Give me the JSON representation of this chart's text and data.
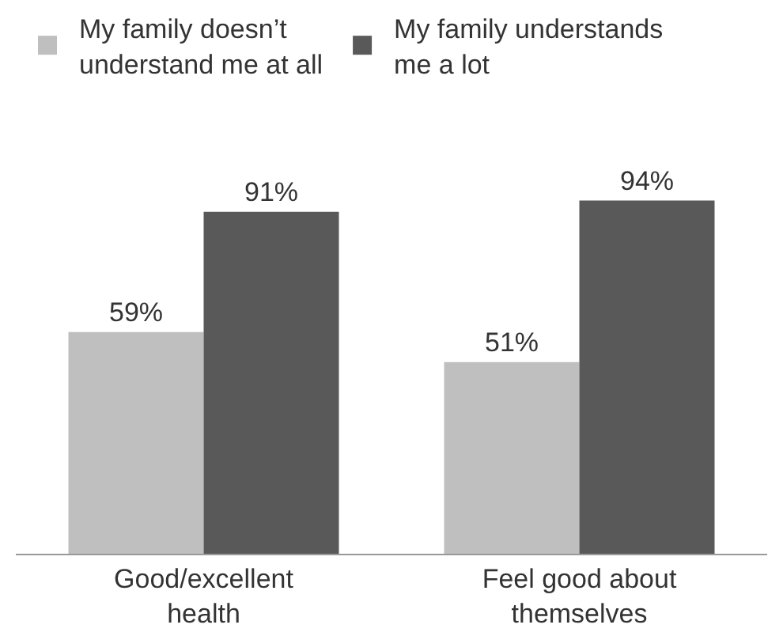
{
  "chart_data": {
    "type": "bar",
    "categories": [
      "Good/excellent health",
      "Feel good about themselves"
    ],
    "series": [
      {
        "name": "My family doesn’t understand me at all",
        "color": "#bfbfbf",
        "values": [
          59,
          51
        ],
        "value_labels": [
          "59%",
          "51%"
        ]
      },
      {
        "name": "My family understands me a lot",
        "color": "#595959",
        "values": [
          91,
          94
        ],
        "value_labels": [
          "91%",
          "94%"
        ]
      }
    ],
    "legend": "top left"
  }
}
